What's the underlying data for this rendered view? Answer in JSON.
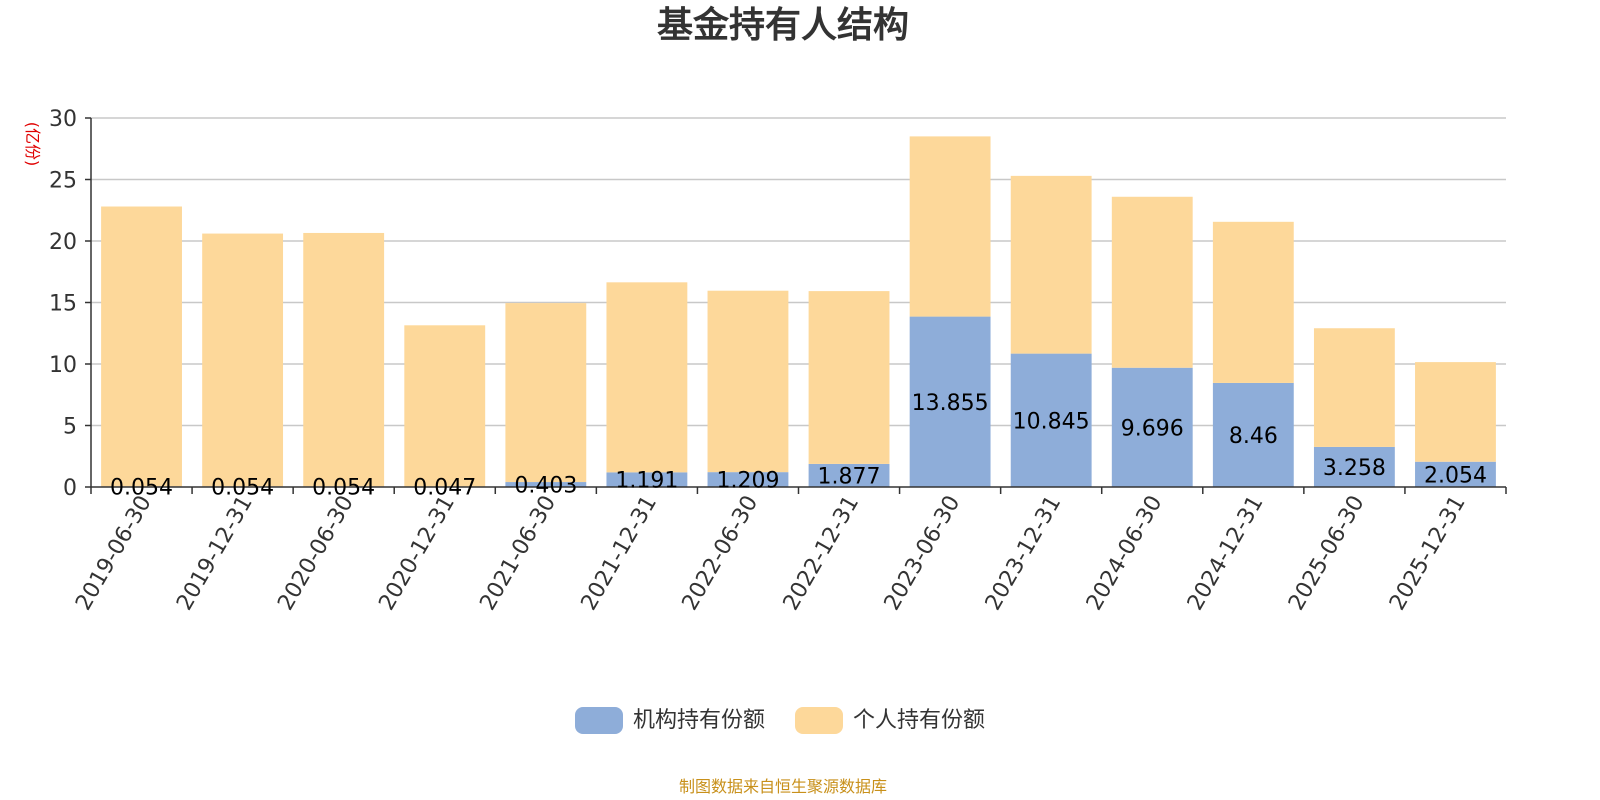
{
  "chart_data": {
    "type": "bar",
    "stacked": true,
    "title": "基金持有人结构",
    "ylabel": "(亿份)",
    "ylim": [
      0,
      30
    ],
    "yticks": [
      0,
      5,
      10,
      15,
      20,
      25,
      30
    ],
    "grid": true,
    "legend_position": "bottom",
    "categories": [
      "2019-06-30",
      "2019-12-31",
      "2020-06-30",
      "2020-12-31",
      "2021-06-30",
      "2021-12-31",
      "2022-06-30",
      "2022-12-31",
      "2023-06-30",
      "2023-12-31",
      "2024-06-30",
      "2024-12-31",
      "2025-06-30",
      "2025-12-31"
    ],
    "series": [
      {
        "name": "机构持有份额",
        "color": "#8eadd9",
        "values": [
          0.054,
          0.054,
          0.054,
          0.047,
          0.403,
          1.191,
          1.209,
          1.877,
          13.855,
          10.845,
          9.696,
          8.46,
          3.258,
          2.054
        ],
        "labels": [
          "0.054",
          "0.054",
          "0.054",
          "0.047",
          "0.403",
          "1.191",
          "1.209",
          "1.877",
          "13.855",
          "10.845",
          "9.696",
          "8.46",
          "3.258",
          "2.054"
        ]
      },
      {
        "name": "个人持有份额",
        "color": "#fdd89a",
        "values": [
          22.75,
          20.55,
          20.6,
          13.1,
          14.55,
          15.45,
          14.75,
          14.05,
          14.65,
          14.45,
          13.9,
          13.1,
          9.65,
          8.1
        ]
      }
    ],
    "source": "制图数据来自恒生聚源数据库"
  }
}
